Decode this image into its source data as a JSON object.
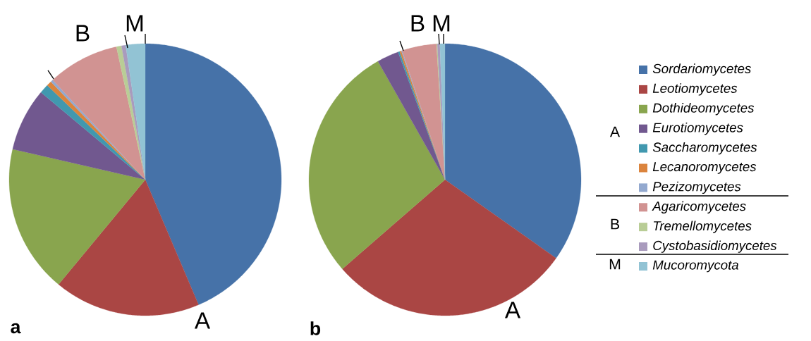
{
  "chart_data": {
    "type": "pie",
    "categories": [
      "Sordariomycetes",
      "Leotiomycetes",
      "Dothideomycetes",
      "Eurotiomycetes",
      "Saccharomycetes",
      "Lecanoromycetes",
      "Pezizomycetes",
      "Agaricomycetes",
      "Tremellomycetes",
      "Cystobasidiomycetes",
      "Mucoromycota"
    ],
    "colors": [
      "#4672a8",
      "#aa4644",
      "#89a54e",
      "#71588f",
      "#4198af",
      "#db843d",
      "#93a9cf",
      "#d19392",
      "#b9cd96",
      "#a99bbd",
      "#92c3d4"
    ],
    "series": [
      {
        "name": "a",
        "values": [
          43.6,
          17.4,
          17.6,
          7.5,
          1.1,
          0.6,
          0.3,
          8.5,
          0.6,
          0.5,
          2.3
        ]
      },
      {
        "name": "b",
        "values": [
          34.8,
          28.8,
          28.2,
          2.6,
          0.2,
          0.2,
          0.1,
          4.1,
          0.1,
          0.3,
          0.6
        ]
      }
    ],
    "annotations": [
      "A",
      "B",
      "M",
      "A",
      "B",
      "M",
      "A",
      "B",
      "M"
    ],
    "legend": "right"
  }
}
